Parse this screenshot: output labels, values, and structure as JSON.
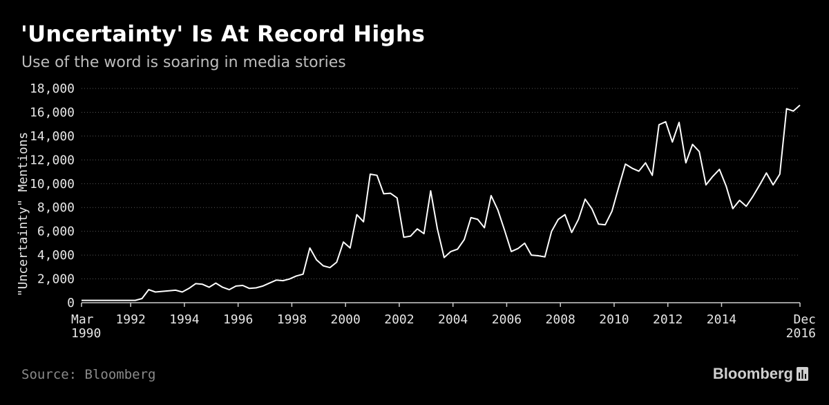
{
  "chart_data": {
    "type": "line",
    "title": "'Uncertainty' Is At Record Highs",
    "subtitle": "Use of the word is soaring in media stories",
    "ylabel": "\"Uncertainty\" Mentions",
    "xlabel": "",
    "ylim": [
      0,
      18000
    ],
    "xlim": [
      1990.17,
      2016.92
    ],
    "grid": true,
    "y_ticks": [
      0,
      2000,
      4000,
      6000,
      8000,
      10000,
      12000,
      14000,
      16000,
      18000
    ],
    "y_tick_labels": [
      "0",
      "2,000",
      "4,000",
      "6,000",
      "8,000",
      "10,000",
      "12,000",
      "14,000",
      "16,000",
      "18,000"
    ],
    "x_ticks": [
      {
        "x": 1990.17,
        "line1": "Mar",
        "line2": "1990"
      },
      {
        "x": 1992,
        "line1": "1992",
        "line2": ""
      },
      {
        "x": 1994,
        "line1": "1994",
        "line2": ""
      },
      {
        "x": 1996,
        "line1": "1996",
        "line2": ""
      },
      {
        "x": 1998,
        "line1": "1998",
        "line2": ""
      },
      {
        "x": 2000,
        "line1": "2000",
        "line2": ""
      },
      {
        "x": 2002,
        "line1": "2002",
        "line2": ""
      },
      {
        "x": 2004,
        "line1": "2004",
        "line2": ""
      },
      {
        "x": 2006,
        "line1": "2006",
        "line2": ""
      },
      {
        "x": 2008,
        "line1": "2008",
        "line2": ""
      },
      {
        "x": 2010,
        "line1": "2010",
        "line2": ""
      },
      {
        "x": 2012,
        "line1": "2012",
        "line2": ""
      },
      {
        "x": 2014,
        "line1": "2014",
        "line2": ""
      },
      {
        "x": 2016.92,
        "line1": "Dec",
        "line2": "2016"
      }
    ],
    "series": [
      {
        "color": "#ffffff",
        "x": [
          1990.17,
          1990.42,
          1990.67,
          1990.92,
          1991.17,
          1991.42,
          1991.67,
          1991.92,
          1992.17,
          1992.42,
          1992.67,
          1992.92,
          1993.17,
          1993.42,
          1993.67,
          1993.92,
          1994.17,
          1994.42,
          1994.67,
          1994.92,
          1995.17,
          1995.42,
          1995.67,
          1995.92,
          1996.17,
          1996.42,
          1996.67,
          1996.92,
          1997.17,
          1997.42,
          1997.67,
          1997.92,
          1998.17,
          1998.42,
          1998.67,
          1998.92,
          1999.17,
          1999.42,
          1999.67,
          1999.92,
          2000.17,
          2000.42,
          2000.67,
          2000.92,
          2001.17,
          2001.42,
          2001.67,
          2001.92,
          2002.17,
          2002.42,
          2002.67,
          2002.92,
          2003.17,
          2003.42,
          2003.67,
          2003.92,
          2004.17,
          2004.42,
          2004.67,
          2004.92,
          2005.17,
          2005.42,
          2005.67,
          2005.92,
          2006.17,
          2006.42,
          2006.67,
          2006.92,
          2007.17,
          2007.42,
          2007.67,
          2007.92,
          2008.17,
          2008.42,
          2008.67,
          2008.92,
          2009.17,
          2009.42,
          2009.67,
          2009.92,
          2010.17,
          2010.42,
          2010.67,
          2010.92,
          2011.17,
          2011.42,
          2011.67,
          2011.92,
          2012.17,
          2012.42,
          2012.67,
          2012.92,
          2013.17,
          2013.42,
          2013.67,
          2013.92,
          2014.17,
          2014.42,
          2014.67,
          2014.92,
          2015.17,
          2015.42,
          2015.67,
          2015.92,
          2016.17,
          2016.42,
          2016.67,
          2016.92
        ],
        "values": [
          200,
          200,
          200,
          200,
          200,
          200,
          200,
          200,
          200,
          350,
          1100,
          900,
          950,
          1000,
          1050,
          900,
          1200,
          1600,
          1550,
          1300,
          1650,
          1300,
          1100,
          1400,
          1450,
          1200,
          1250,
          1400,
          1650,
          1900,
          1850,
          2000,
          2250,
          2400,
          4600,
          3600,
          3100,
          2950,
          3400,
          5100,
          4600,
          7400,
          6800,
          10800,
          10700,
          9150,
          9200,
          8800,
          5500,
          5600,
          6200,
          5800,
          9400,
          6200,
          3800,
          4300,
          4500,
          5300,
          7150,
          7000,
          6300,
          9000,
          7800,
          6100,
          4300,
          4550,
          5000,
          4000,
          3950,
          3850,
          6000,
          7000,
          7400,
          5900,
          7000,
          8700,
          7900,
          6600,
          6550,
          7700,
          9700,
          11650,
          11300,
          11050,
          11750,
          10700,
          14950,
          15200,
          13500,
          15150,
          11750,
          13300,
          12700,
          9900,
          10600,
          11200,
          9800,
          7900,
          8600,
          8100,
          8950,
          9900,
          10900,
          9900,
          10800,
          16300,
          16100,
          16600
        ]
      }
    ],
    "source": "Source: Bloomberg",
    "brand": "Bloomberg"
  }
}
